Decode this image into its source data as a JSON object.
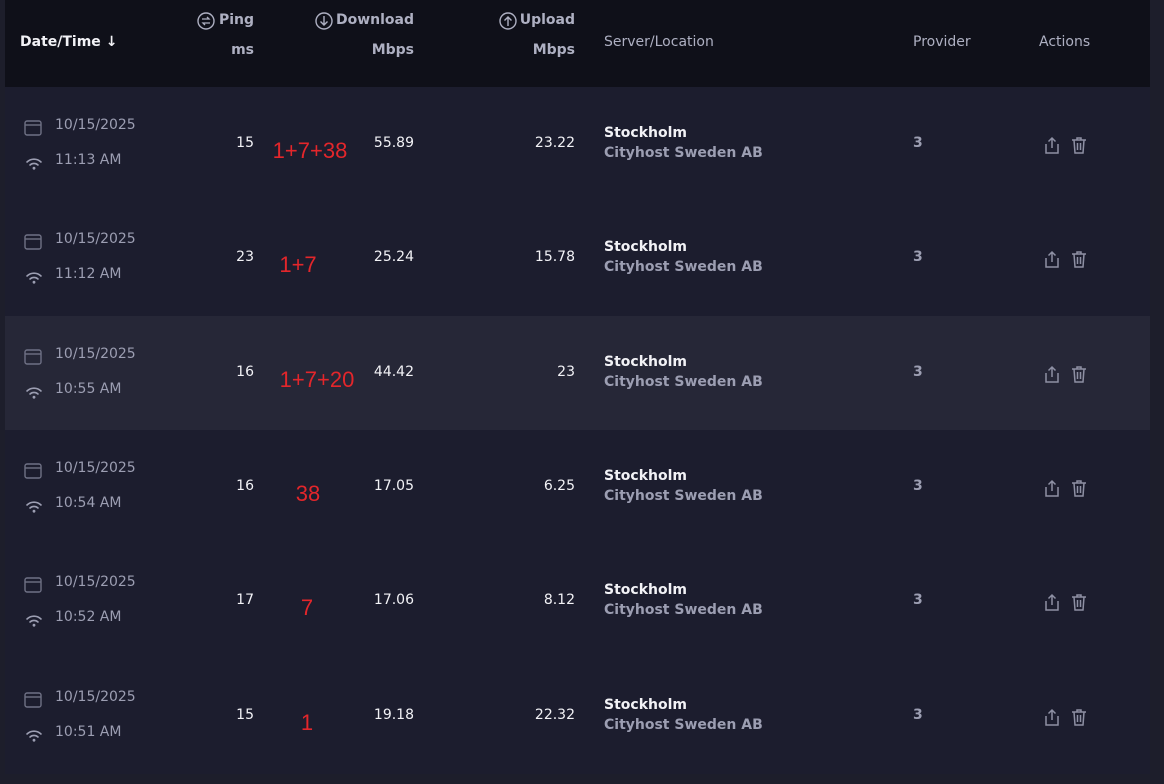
{
  "header": {
    "date_time": "Date/Time",
    "ping": {
      "label": "Ping",
      "unit": "ms"
    },
    "download": {
      "label": "Download",
      "unit": "Mbps"
    },
    "upload": {
      "label": "Upload",
      "unit": "Mbps"
    },
    "server": "Server/Location",
    "provider": "Provider",
    "actions": "Actions"
  },
  "rows": [
    {
      "date": "10/15/2025",
      "time": "11:13 AM",
      "ping": "15",
      "note": "1+7+38",
      "download": "55.89",
      "upload": "23.22",
      "server": "Stockholm",
      "host": "Cityhost Sweden AB",
      "provider": "3"
    },
    {
      "date": "10/15/2025",
      "time": "11:12 AM",
      "ping": "23",
      "note": "1+7",
      "download": "25.24",
      "upload": "15.78",
      "server": "Stockholm",
      "host": "Cityhost Sweden AB",
      "provider": "3"
    },
    {
      "date": "10/15/2025",
      "time": "10:55 AM",
      "ping": "16",
      "note": "1+7+20",
      "download": "44.42",
      "upload": "23",
      "server": "Stockholm",
      "host": "Cityhost Sweden AB",
      "provider": "3"
    },
    {
      "date": "10/15/2025",
      "time": "10:54 AM",
      "ping": "16",
      "note": "38",
      "download": "17.05",
      "upload": "6.25",
      "server": "Stockholm",
      "host": "Cityhost Sweden AB",
      "provider": "3"
    },
    {
      "date": "10/15/2025",
      "time": "10:52 AM",
      "ping": "17",
      "note": "7",
      "download": "17.06",
      "upload": "8.12",
      "server": "Stockholm",
      "host": "Cityhost Sweden AB",
      "provider": "3"
    },
    {
      "date": "10/15/2025",
      "time": "10:51 AM",
      "ping": "15",
      "note": "1",
      "download": "19.18",
      "upload": "22.32",
      "server": "Stockholm",
      "host": "Cityhost Sweden AB",
      "provider": "3"
    }
  ]
}
